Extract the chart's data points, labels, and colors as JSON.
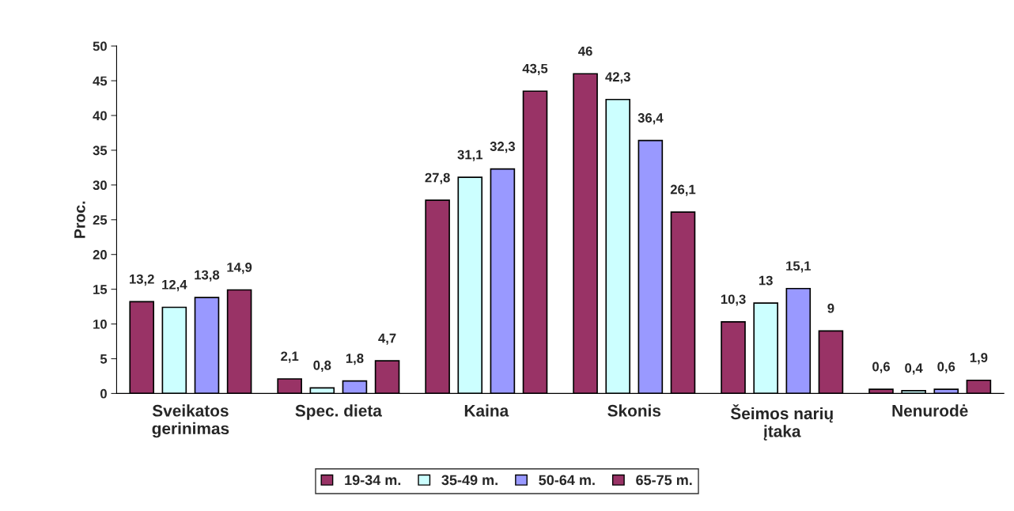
{
  "chart_data": {
    "type": "bar",
    "ylabel": "Proc.",
    "categories": [
      "Sveikatos\ngerinimas",
      "Spec. dieta",
      "Kaina",
      "Skonis",
      "Šeimos narių\nįtaka",
      "Nenurodė"
    ],
    "series": [
      {
        "name": "19-34 m.",
        "color": "#993366",
        "values": [
          13.2,
          2.1,
          27.8,
          46,
          10.3,
          0.6
        ],
        "value_labels": [
          "13,2",
          "2,1",
          "27,8",
          "46",
          "10,3",
          "0,6"
        ]
      },
      {
        "name": "35-49 m.",
        "color": "#ccffff",
        "values": [
          12.4,
          0.8,
          31.1,
          42.3,
          13,
          0.4
        ],
        "value_labels": [
          "12,4",
          "0,8",
          "31,1",
          "42,3",
          "13",
          "0,4"
        ]
      },
      {
        "name": "50-64 m.",
        "color": "#9999ff",
        "values": [
          13.8,
          1.8,
          32.3,
          36.4,
          15.1,
          0.6
        ],
        "value_labels": [
          "13,8",
          "1,8",
          "32,3",
          "36,4",
          "15,1",
          "0,6"
        ]
      },
      {
        "name": "65-75 m.",
        "color": "#993366",
        "values": [
          14.9,
          4.7,
          43.5,
          26.1,
          9,
          1.9
        ],
        "value_labels": [
          "14,9",
          "4,7",
          "43,5",
          "26,1",
          "9",
          "1,9"
        ]
      }
    ],
    "ylim": [
      0,
      50
    ],
    "yticks": [
      0,
      5,
      10,
      15,
      20,
      25,
      30,
      35,
      40,
      45,
      50
    ],
    "grid": false,
    "legend": "bottom"
  }
}
